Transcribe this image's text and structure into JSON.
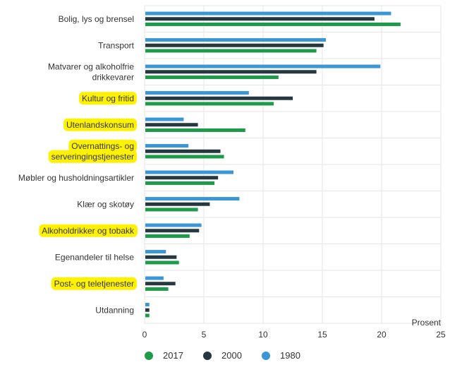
{
  "chart_data": {
    "type": "bar",
    "orientation": "horizontal",
    "categories": [
      [
        "Bolig, lys og brensel"
      ],
      [
        "Transport"
      ],
      [
        "Matvarer og alkoholfrie",
        "drikkevarer"
      ],
      [
        "Kultur og fritid"
      ],
      [
        "Utenlandskonsum"
      ],
      [
        "Overnattings- og",
        "serveringingstjenester"
      ],
      [
        "Møbler og husholdningsartikler"
      ],
      [
        "Klær og skotøy"
      ],
      [
        "Alkoholdrikker og tobakk"
      ],
      [
        "Egenandeler til helse"
      ],
      [
        "Post- og teletjenester"
      ],
      [
        "Utdanning"
      ]
    ],
    "highlighted_categories": [
      3,
      4,
      5,
      8,
      10
    ],
    "highlight_color": "#fff200",
    "series": [
      {
        "name": "1980",
        "color": "#3a96d6",
        "values": [
          20.8,
          15.3,
          19.9,
          8.8,
          3.3,
          3.7,
          7.5,
          8.0,
          4.8,
          1.8,
          1.6,
          0.4
        ]
      },
      {
        "name": "2000",
        "color": "#25383f",
        "values": [
          19.4,
          15.1,
          14.5,
          12.5,
          4.5,
          6.4,
          6.2,
          5.5,
          4.6,
          2.7,
          2.6,
          0.4
        ]
      },
      {
        "name": "2017",
        "color": "#1d9a4a",
        "values": [
          21.6,
          14.5,
          11.3,
          10.9,
          8.5,
          6.7,
          5.9,
          4.5,
          3.8,
          2.9,
          2.0,
          0.4
        ]
      }
    ],
    "xlim": [
      0,
      25
    ],
    "xticks": [
      "0",
      "5",
      "10",
      "15",
      "20",
      "25"
    ],
    "xlabel": "Prosent",
    "grid": true,
    "legend_order": [
      "2017",
      "2000",
      "1980"
    ],
    "legend_position": "bottom"
  }
}
